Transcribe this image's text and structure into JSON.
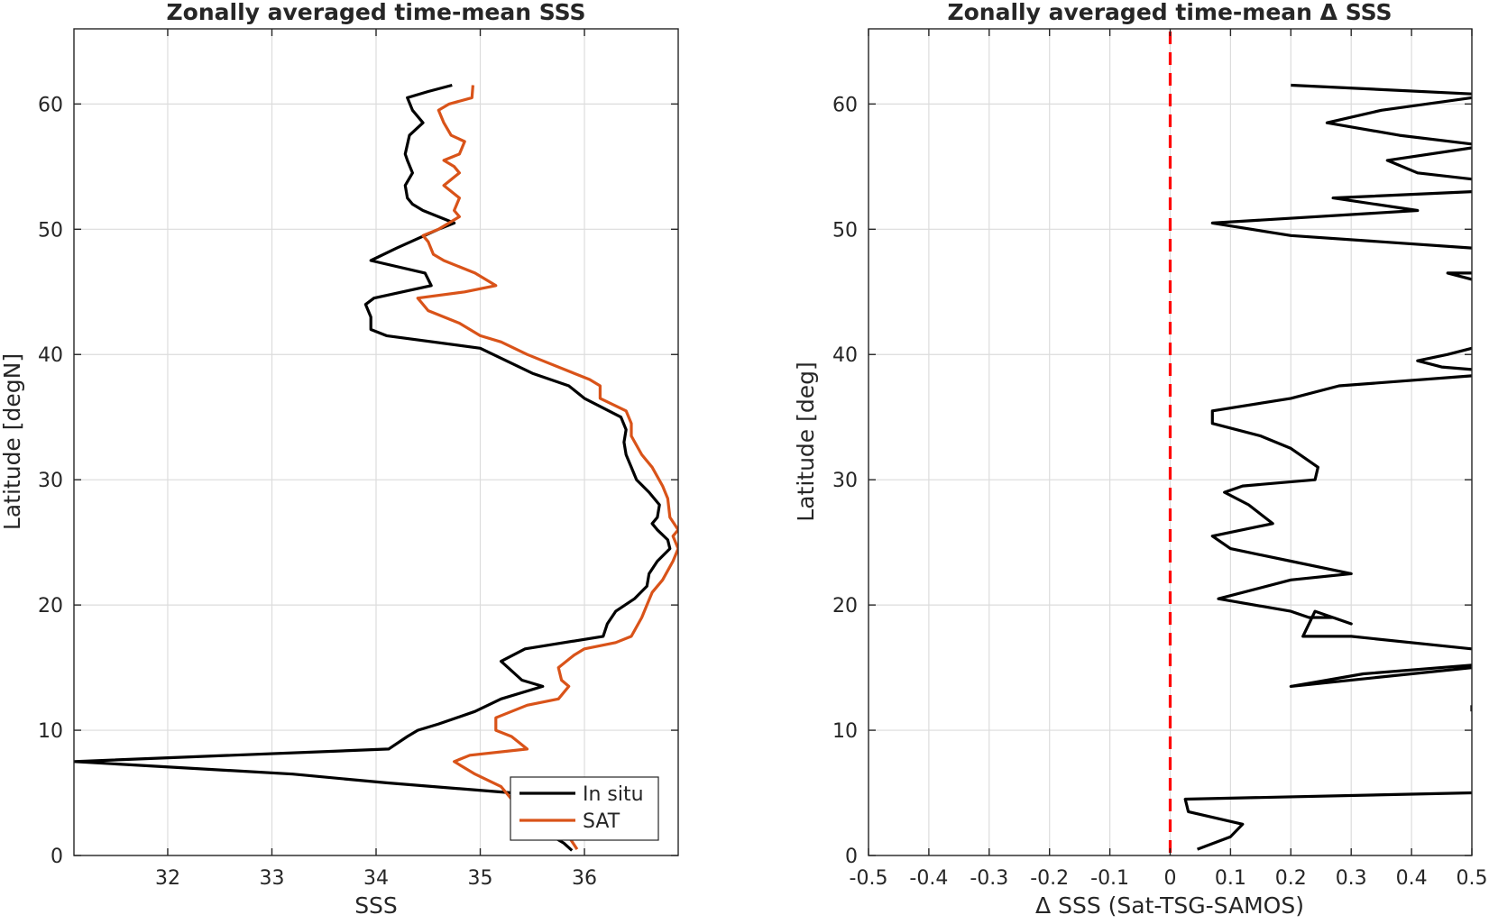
{
  "chart_data": [
    {
      "type": "line",
      "title": "Zonally averaged time-mean SSS",
      "xlabel": "SSS",
      "ylabel": "Latitude [degN]",
      "xlim": [
        31.1,
        36.9
      ],
      "ylim": [
        0,
        66
      ],
      "xticks": [
        "32",
        "33",
        "34",
        "35",
        "36"
      ],
      "yticks": [
        "0",
        "10",
        "20",
        "30",
        "40",
        "50",
        "60"
      ],
      "grid": true,
      "legend_position": "bottom-right",
      "series": [
        {
          "name": "In situ",
          "color": "#000000",
          "points": [
            [
              35.88,
              0.4
            ],
            [
              35.8,
              1.0
            ],
            [
              35.7,
              1.5
            ],
            [
              35.5,
              2.5
            ],
            [
              35.6,
              3.0
            ],
            [
              35.7,
              4.0
            ],
            [
              35.55,
              4.5
            ],
            [
              35.3,
              5.0
            ],
            [
              34.1,
              5.8
            ],
            [
              33.2,
              6.5
            ],
            [
              31.1,
              7.5
            ],
            [
              34.12,
              8.5
            ],
            [
              34.3,
              9.5
            ],
            [
              34.4,
              10.0
            ],
            [
              34.6,
              10.5
            ],
            [
              34.95,
              11.5
            ],
            [
              35.2,
              12.5
            ],
            [
              35.6,
              13.5
            ],
            [
              35.4,
              14.0
            ],
            [
              35.2,
              15.5
            ],
            [
              35.43,
              16.5
            ],
            [
              36.18,
              17.5
            ],
            [
              36.22,
              18.5
            ],
            [
              36.3,
              19.5
            ],
            [
              36.48,
              20.5
            ],
            [
              36.6,
              21.5
            ],
            [
              36.62,
              22.5
            ],
            [
              36.7,
              23.5
            ],
            [
              36.82,
              24.5
            ],
            [
              36.8,
              25.2
            ],
            [
              36.7,
              26.0
            ],
            [
              36.65,
              26.5
            ],
            [
              36.7,
              27.0
            ],
            [
              36.72,
              28.0
            ],
            [
              36.62,
              29.0
            ],
            [
              36.5,
              30.0
            ],
            [
              36.45,
              31.0
            ],
            [
              36.4,
              32.0
            ],
            [
              36.38,
              33.0
            ],
            [
              36.4,
              34.0
            ],
            [
              36.35,
              35.0
            ],
            [
              36.0,
              36.5
            ],
            [
              35.85,
              37.5
            ],
            [
              35.5,
              38.5
            ],
            [
              35.0,
              40.5
            ],
            [
              34.1,
              41.5
            ],
            [
              33.95,
              42.0
            ],
            [
              33.95,
              43.0
            ],
            [
              33.9,
              44.0
            ],
            [
              33.98,
              44.5
            ],
            [
              34.53,
              45.5
            ],
            [
              34.47,
              46.5
            ],
            [
              33.95,
              47.5
            ],
            [
              34.2,
              48.5
            ],
            [
              34.6,
              50.0
            ],
            [
              34.75,
              50.5
            ],
            [
              34.45,
              51.5
            ],
            [
              34.35,
              52.0
            ],
            [
              34.3,
              52.5
            ],
            [
              34.28,
              53.5
            ],
            [
              34.35,
              54.5
            ],
            [
              34.3,
              55.5
            ],
            [
              34.28,
              56.0
            ],
            [
              34.32,
              57.5
            ],
            [
              34.45,
              58.5
            ],
            [
              34.35,
              59.5
            ],
            [
              34.3,
              60.5
            ],
            [
              34.5,
              61.0
            ],
            [
              34.73,
              61.5
            ]
          ]
        },
        {
          "name": "SAT",
          "color": "#D95319",
          "points": [
            [
              35.93,
              0.5
            ],
            [
              35.85,
              1.5
            ],
            [
              35.5,
              3.0
            ],
            [
              35.3,
              4.5
            ],
            [
              35.2,
              5.5
            ],
            [
              34.95,
              6.5
            ],
            [
              34.75,
              7.5
            ],
            [
              34.9,
              8.0
            ],
            [
              35.45,
              8.5
            ],
            [
              35.3,
              9.5
            ],
            [
              35.15,
              10.0
            ],
            [
              35.15,
              11.0
            ],
            [
              35.45,
              12.0
            ],
            [
              35.75,
              12.5
            ],
            [
              35.85,
              13.5
            ],
            [
              35.78,
              14.0
            ],
            [
              35.75,
              15.0
            ],
            [
              35.9,
              16.0
            ],
            [
              36.0,
              16.5
            ],
            [
              36.3,
              17.0
            ],
            [
              36.45,
              17.5
            ],
            [
              36.55,
              19.0
            ],
            [
              36.6,
              20.0
            ],
            [
              36.65,
              21.0
            ],
            [
              36.75,
              22.0
            ],
            [
              36.85,
              23.5
            ],
            [
              36.9,
              24.5
            ],
            [
              36.85,
              25.5
            ],
            [
              36.9,
              26.0
            ],
            [
              36.82,
              27.0
            ],
            [
              36.8,
              28.5
            ],
            [
              36.75,
              29.5
            ],
            [
              36.65,
              31.0
            ],
            [
              36.55,
              32.0
            ],
            [
              36.45,
              33.5
            ],
            [
              36.45,
              34.5
            ],
            [
              36.4,
              35.5
            ],
            [
              36.15,
              36.5
            ],
            [
              36.15,
              37.5
            ],
            [
              36.05,
              38.0
            ],
            [
              35.9,
              38.5
            ],
            [
              35.6,
              39.5
            ],
            [
              35.45,
              40.0
            ],
            [
              35.2,
              41.0
            ],
            [
              35.0,
              41.5
            ],
            [
              34.8,
              42.5
            ],
            [
              34.5,
              43.5
            ],
            [
              34.4,
              44.5
            ],
            [
              34.85,
              45.0
            ],
            [
              35.15,
              45.5
            ],
            [
              34.95,
              46.5
            ],
            [
              34.65,
              47.5
            ],
            [
              34.55,
              48.0
            ],
            [
              34.5,
              49.0
            ],
            [
              34.45,
              49.5
            ],
            [
              34.6,
              50.0
            ],
            [
              34.8,
              51.0
            ],
            [
              34.75,
              51.5
            ],
            [
              34.8,
              52.5
            ],
            [
              34.65,
              53.5
            ],
            [
              34.8,
              54.5
            ],
            [
              34.75,
              55.0
            ],
            [
              34.65,
              55.5
            ],
            [
              34.8,
              56.0
            ],
            [
              34.85,
              57.0
            ],
            [
              34.72,
              57.5
            ],
            [
              34.65,
              58.5
            ],
            [
              34.6,
              59.5
            ],
            [
              34.7,
              60.0
            ],
            [
              34.92,
              60.5
            ],
            [
              34.93,
              61.5
            ]
          ]
        }
      ]
    },
    {
      "type": "line",
      "title": "Zonally averaged time-mean Δ SSS",
      "xlabel": "Δ SSS (Sat-TSG-SAMOS)",
      "ylabel": "Latitude [deg]",
      "xlim": [
        -0.5,
        0.5
      ],
      "ylim": [
        0,
        66
      ],
      "xticks": [
        "-0.5",
        "-0.4",
        "-0.3",
        "-0.2",
        "-0.1",
        "0",
        "0.1",
        "0.2",
        "0.3",
        "0.4",
        "0.5"
      ],
      "yticks": [
        "0",
        "10",
        "20",
        "30",
        "40",
        "50",
        "60"
      ],
      "grid": true,
      "reference_line": {
        "x": 0,
        "color": "#FF0000",
        "style": "dashed"
      },
      "series": [
        {
          "name": "",
          "color": "#000000",
          "segments": [
            [
              [
                0.045,
                0.5
              ],
              [
                0.1,
                1.5
              ],
              [
                0.12,
                2.5
              ],
              [
                0.03,
                3.5
              ],
              [
                0.025,
                4.5
              ],
              [
                0.5,
                5.0
              ]
            ],
            [
              [
                0.5,
                12.0
              ],
              [
                0.5,
                11.5
              ]
            ],
            [
              [
                0.5,
                15.0
              ],
              [
                0.2,
                13.5
              ],
              [
                0.32,
                14.5
              ],
              [
                0.5,
                15.2
              ]
            ],
            [
              [
                0.5,
                16.5
              ],
              [
                0.3,
                17.5
              ],
              [
                0.22,
                17.5
              ],
              [
                0.24,
                19.5
              ],
              [
                0.3,
                18.5
              ],
              [
                0.27,
                19.0
              ],
              [
                0.23,
                19.0
              ],
              [
                0.2,
                19.5
              ],
              [
                0.08,
                20.5
              ],
              [
                0.2,
                22.0
              ],
              [
                0.3,
                22.5
              ],
              [
                0.2,
                23.5
              ],
              [
                0.1,
                24.5
              ],
              [
                0.07,
                25.5
              ],
              [
                0.17,
                26.5
              ],
              [
                0.13,
                28.0
              ],
              [
                0.09,
                29.0
              ],
              [
                0.12,
                29.5
              ],
              [
                0.24,
                30.0
              ],
              [
                0.245,
                31.0
              ],
              [
                0.2,
                32.5
              ],
              [
                0.15,
                33.5
              ],
              [
                0.07,
                34.5
              ],
              [
                0.07,
                35.5
              ],
              [
                0.2,
                36.5
              ],
              [
                0.28,
                37.5
              ],
              [
                0.5,
                38.3
              ]
            ],
            [
              [
                0.5,
                38.8
              ],
              [
                0.45,
                39.0
              ],
              [
                0.41,
                39.5
              ],
              [
                0.46,
                40.0
              ],
              [
                0.5,
                40.5
              ]
            ],
            [
              [
                0.5,
                46.0
              ],
              [
                0.46,
                46.5
              ],
              [
                0.5,
                46.5
              ]
            ],
            [
              [
                0.5,
                48.5
              ],
              [
                0.2,
                49.5
              ],
              [
                0.07,
                50.5
              ],
              [
                0.41,
                51.5
              ],
              [
                0.27,
                52.5
              ],
              [
                0.5,
                53.0
              ]
            ],
            [
              [
                0.5,
                54.0
              ],
              [
                0.41,
                54.5
              ],
              [
                0.36,
                55.5
              ],
              [
                0.5,
                56.5
              ]
            ],
            [
              [
                0.5,
                56.8
              ],
              [
                0.38,
                57.5
              ],
              [
                0.26,
                58.5
              ],
              [
                0.35,
                59.5
              ],
              [
                0.5,
                60.5
              ]
            ],
            [
              [
                0.5,
                60.8
              ],
              [
                0.2,
                61.5
              ]
            ]
          ]
        }
      ]
    }
  ],
  "legend": {
    "items": [
      {
        "label": "In situ",
        "color": "#000000"
      },
      {
        "label": "SAT",
        "color": "#D95319"
      }
    ]
  }
}
